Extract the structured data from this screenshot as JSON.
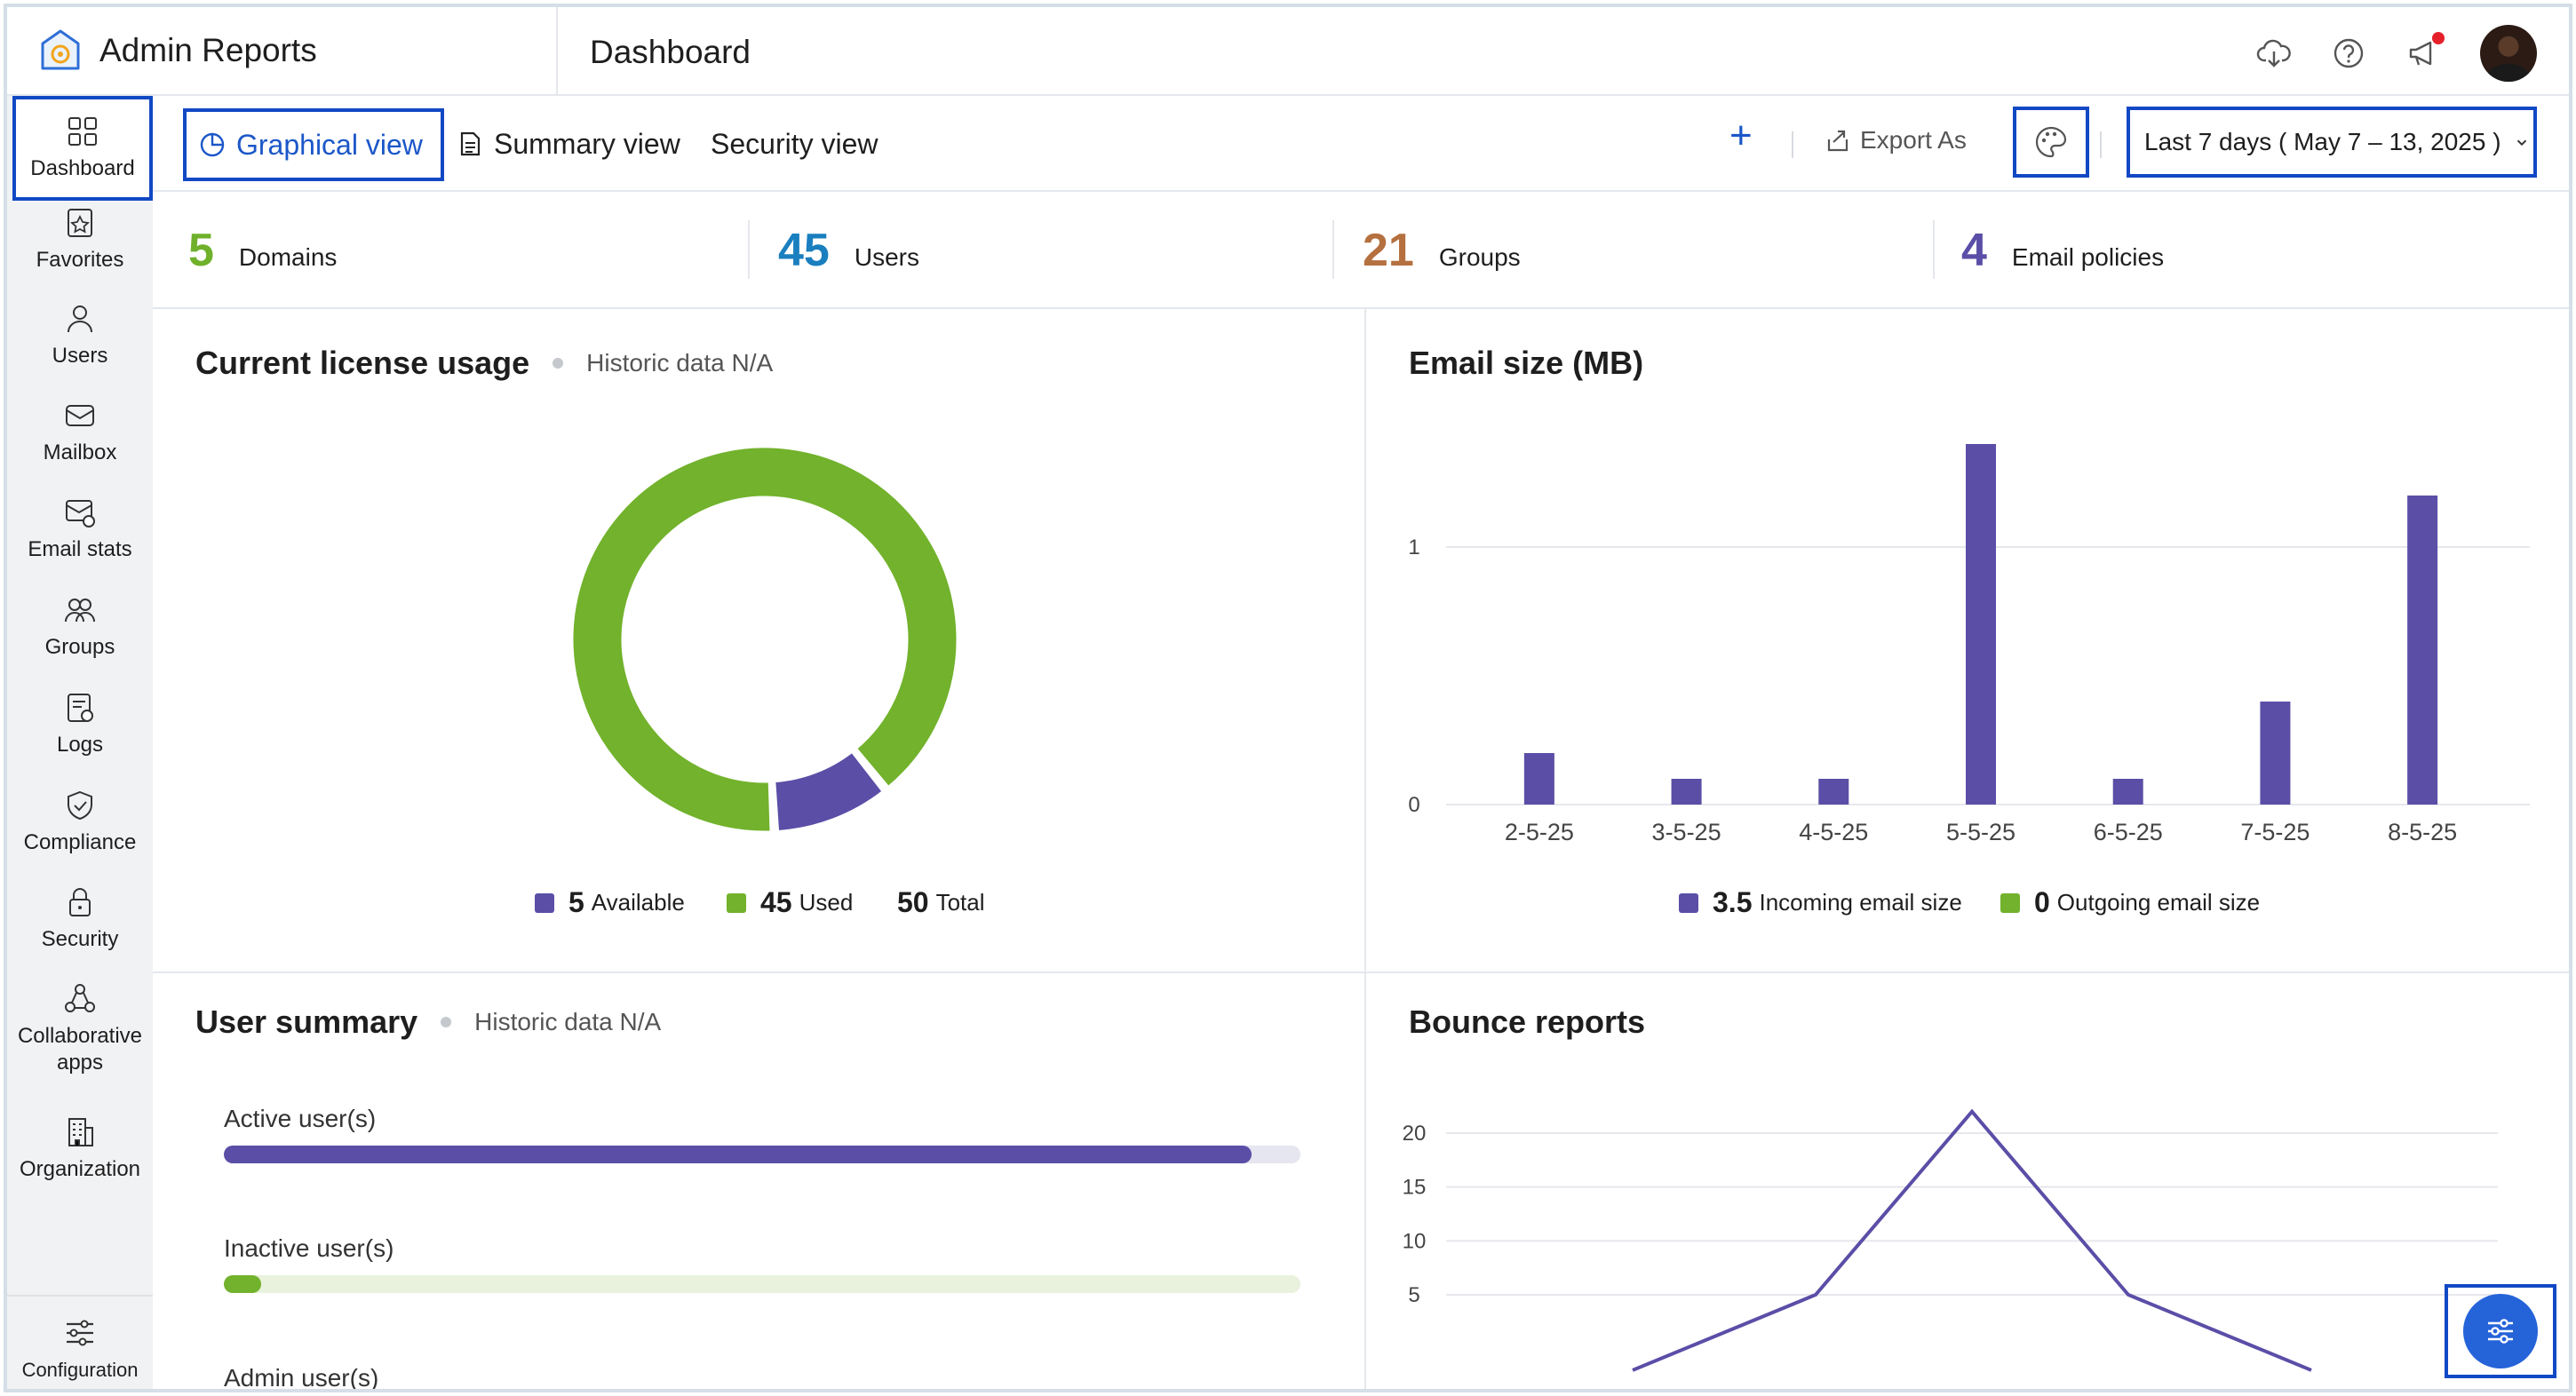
{
  "app": {
    "title": "Admin Reports",
    "page_title": "Dashboard"
  },
  "header_icons": [
    "cloud-download-icon",
    "help-icon",
    "announcement-icon"
  ],
  "sidebar": {
    "items": [
      {
        "label": "Dashboard",
        "icon": "grid-icon",
        "active": true
      },
      {
        "label": "Favorites",
        "icon": "star-list-icon"
      },
      {
        "label": "Users",
        "icon": "user-icon"
      },
      {
        "label": "Mailbox",
        "icon": "mailbox-icon"
      },
      {
        "label": "Email stats",
        "icon": "mail-stats-icon"
      },
      {
        "label": "Groups",
        "icon": "groups-icon"
      },
      {
        "label": "Logs",
        "icon": "logs-icon"
      },
      {
        "label": "Compliance",
        "icon": "shield-check-icon"
      },
      {
        "label": "Security",
        "icon": "lock-icon"
      },
      {
        "label": "Collaborative apps",
        "icon": "collab-icon"
      },
      {
        "label": "Organization",
        "icon": "building-icon"
      }
    ],
    "config_label": "Configuration"
  },
  "toolbar": {
    "tabs": [
      {
        "label": "Graphical view",
        "active": true
      },
      {
        "label": "Summary view"
      },
      {
        "label": "Security view"
      }
    ],
    "add_label": "+",
    "export_label": "Export As",
    "date_range": "Last 7 days ( May 7 – 13, 2025 )"
  },
  "stats": [
    {
      "value": "5",
      "label": "Domains",
      "color": "#6fb12b"
    },
    {
      "value": "45",
      "label": "Users",
      "color": "#1a7fbf"
    },
    {
      "value": "21",
      "label": "Groups",
      "color": "#b5703f"
    },
    {
      "value": "4",
      "label": "Email policies",
      "color": "#5a4ea7"
    }
  ],
  "license": {
    "title": "Current license usage",
    "sub": "Historic data N/A",
    "legend": [
      {
        "num": "5",
        "label": "Available",
        "color": "#5a4ea7"
      },
      {
        "num": "45",
        "label": "Used",
        "color": "#72b22c"
      },
      {
        "num": "50",
        "label": "Total"
      }
    ]
  },
  "email_size": {
    "title": "Email size (MB)",
    "legend": [
      {
        "num": "3.5",
        "label": "Incoming email size",
        "color": "#5a4ea7"
      },
      {
        "num": "0",
        "label": "Outgoing email size",
        "color": "#72b22c"
      }
    ]
  },
  "user_summary": {
    "title": "User summary",
    "sub": "Historic data N/A",
    "rows": [
      {
        "label": "Active user(s)",
        "fraction": 0.955,
        "color": "#5a4ea7",
        "track": "#e6e6f0"
      },
      {
        "label": "Inactive user(s)",
        "fraction": 0.035,
        "color": "#72b22c",
        "track": "#e8f2dc"
      },
      {
        "label": "Admin user(s)"
      }
    ]
  },
  "bounce": {
    "title": "Bounce reports"
  },
  "chart_data": [
    {
      "type": "pie",
      "title": "Current license usage",
      "categories": [
        "Available",
        "Used"
      ],
      "values": [
        5,
        45
      ],
      "colors": [
        "#5a4ea7",
        "#72b22c"
      ]
    },
    {
      "type": "bar",
      "title": "Email size (MB)",
      "categories": [
        "2-5-25",
        "3-5-25",
        "4-5-25",
        "5-5-25",
        "6-5-25",
        "7-5-25",
        "8-5-25"
      ],
      "series": [
        {
          "name": "Incoming email size",
          "values": [
            0.2,
            0.1,
            0.1,
            1.4,
            0.1,
            0.4,
            1.2
          ],
          "color": "#5a4ea7"
        }
      ],
      "yticks": [
        "0",
        "1"
      ],
      "ylim": [
        0,
        1.5
      ],
      "grid": true
    },
    {
      "type": "line",
      "title": "Bounce reports",
      "x": [
        0,
        1,
        2,
        3,
        4
      ],
      "series": [
        {
          "values": [
            -2,
            5,
            22,
            5,
            -2
          ],
          "color": "#5a4ea7"
        }
      ],
      "yticks": [
        "5",
        "10",
        "15",
        "20"
      ],
      "ylim": [
        5,
        23
      ],
      "grid": true
    }
  ]
}
